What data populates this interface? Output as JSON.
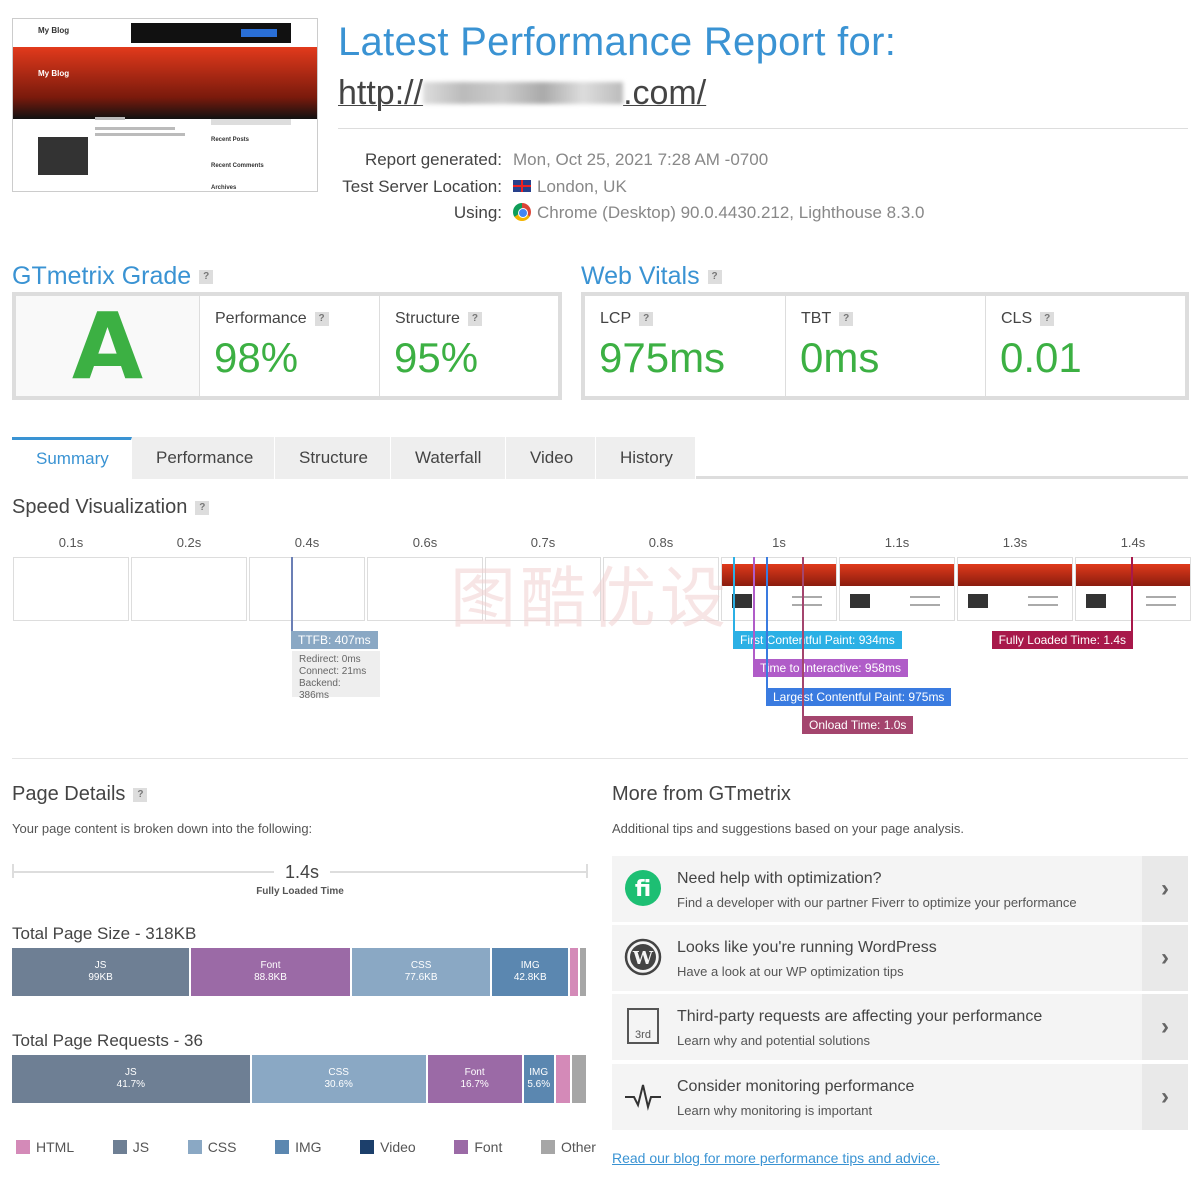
{
  "header": {
    "title": "Latest Performance Report for:",
    "url_prefix": "http://",
    "url_suffix": ".com/",
    "thumb": {
      "site_title": "My Blog",
      "hero_title": "My Blog",
      "recent_posts": "Recent Posts",
      "recent_comments": "Recent Comments",
      "archives": "Archives"
    }
  },
  "meta": {
    "report_generated_label": "Report generated:",
    "report_generated_value": "Mon, Oct 25, 2021 7:28 AM -0700",
    "location_label": "Test Server Location:",
    "location_value": "London, UK",
    "using_label": "Using:",
    "using_value": "Chrome (Desktop) 90.0.4430.212, Lighthouse 8.3.0"
  },
  "grade": {
    "title": "GTmetrix Grade",
    "letter": "A",
    "performance_label": "Performance",
    "performance_value": "98%",
    "structure_label": "Structure",
    "structure_value": "95%"
  },
  "vitals": {
    "title": "Web Vitals",
    "lcp_label": "LCP",
    "lcp_value": "975ms",
    "tbt_label": "TBT",
    "tbt_value": "0ms",
    "cls_label": "CLS",
    "cls_value": "0.01"
  },
  "tabs": [
    "Summary",
    "Performance",
    "Structure",
    "Waterfall",
    "Video",
    "History"
  ],
  "speed": {
    "title": "Speed Visualization",
    "ticks": [
      "0.1s",
      "0.2s",
      "0.4s",
      "0.6s",
      "0.7s",
      "0.8s",
      "1s",
      "1.1s",
      "1.3s",
      "1.4s"
    ],
    "ttfb": "TTFB: 407ms",
    "redirect": "Redirect: 0ms",
    "connect": "Connect: 21ms",
    "backend": "Backend: 386ms",
    "fcp": "First Contentful Paint: 934ms",
    "tti": "Time to Interactive: 958ms",
    "lcp": "Largest Contentful Paint: 975ms",
    "onload": "Onload Time: 1.0s",
    "fully": "Fully Loaded Time: 1.4s",
    "watermark": "图酷优设"
  },
  "details": {
    "title": "Page Details",
    "subtitle": "Your page content is broken down into the following:",
    "fully_loaded_value": "1.4s",
    "fully_loaded_label": "Fully Loaded Time",
    "size_title": "Total Page Size - 318KB",
    "size_segments": [
      {
        "name": "JS",
        "value": "99KB",
        "pct": 31.1
      },
      {
        "name": "Font",
        "value": "88.8KB",
        "pct": 27.9
      },
      {
        "name": "CSS",
        "value": "77.6KB",
        "pct": 24.4
      },
      {
        "name": "IMG",
        "value": "42.8KB",
        "pct": 13.5
      },
      {
        "name": "",
        "value": "",
        "pct": 1.7
      },
      {
        "name": "",
        "value": "",
        "pct": 1.4
      }
    ],
    "requests_title": "Total Page Requests - 36",
    "req_segments": [
      {
        "name": "JS",
        "value": "41.7%",
        "pct": 41.7
      },
      {
        "name": "CSS",
        "value": "30.6%",
        "pct": 30.6
      },
      {
        "name": "Font",
        "value": "16.7%",
        "pct": 16.7
      },
      {
        "name": "IMG",
        "value": "5.6%",
        "pct": 5.6
      },
      {
        "name": "",
        "value": "",
        "pct": 2.8
      },
      {
        "name": "",
        "value": "",
        "pct": 2.8
      }
    ],
    "legend": [
      {
        "label": "HTML",
        "color": "#d48ab8"
      },
      {
        "label": "JS",
        "color": "#6e7f94"
      },
      {
        "label": "CSS",
        "color": "#8aa8c4"
      },
      {
        "label": "IMG",
        "color": "#5b87b0"
      },
      {
        "label": "Video",
        "color": "#1c3f6b"
      },
      {
        "label": "Font",
        "color": "#9b6aa6"
      },
      {
        "label": "Other",
        "color": "#a6a6a6"
      }
    ]
  },
  "more": {
    "title": "More from GTmetrix",
    "subtitle": "Additional tips and suggestions based on your page analysis.",
    "cards": [
      {
        "title": "Need help with optimization?",
        "desc": "Find a developer with our partner Fiverr to optimize your performance"
      },
      {
        "title": "Looks like you're running WordPress",
        "desc": "Have a look at our WP optimization tips"
      },
      {
        "title": "Third-party requests are affecting your performance",
        "desc": "Learn why and potential solutions"
      },
      {
        "title": "Consider monitoring performance",
        "desc": "Learn why monitoring is important"
      }
    ],
    "third_party_icon_label": "3rd",
    "blog_link": "Read our blog for more performance tips and advice."
  }
}
